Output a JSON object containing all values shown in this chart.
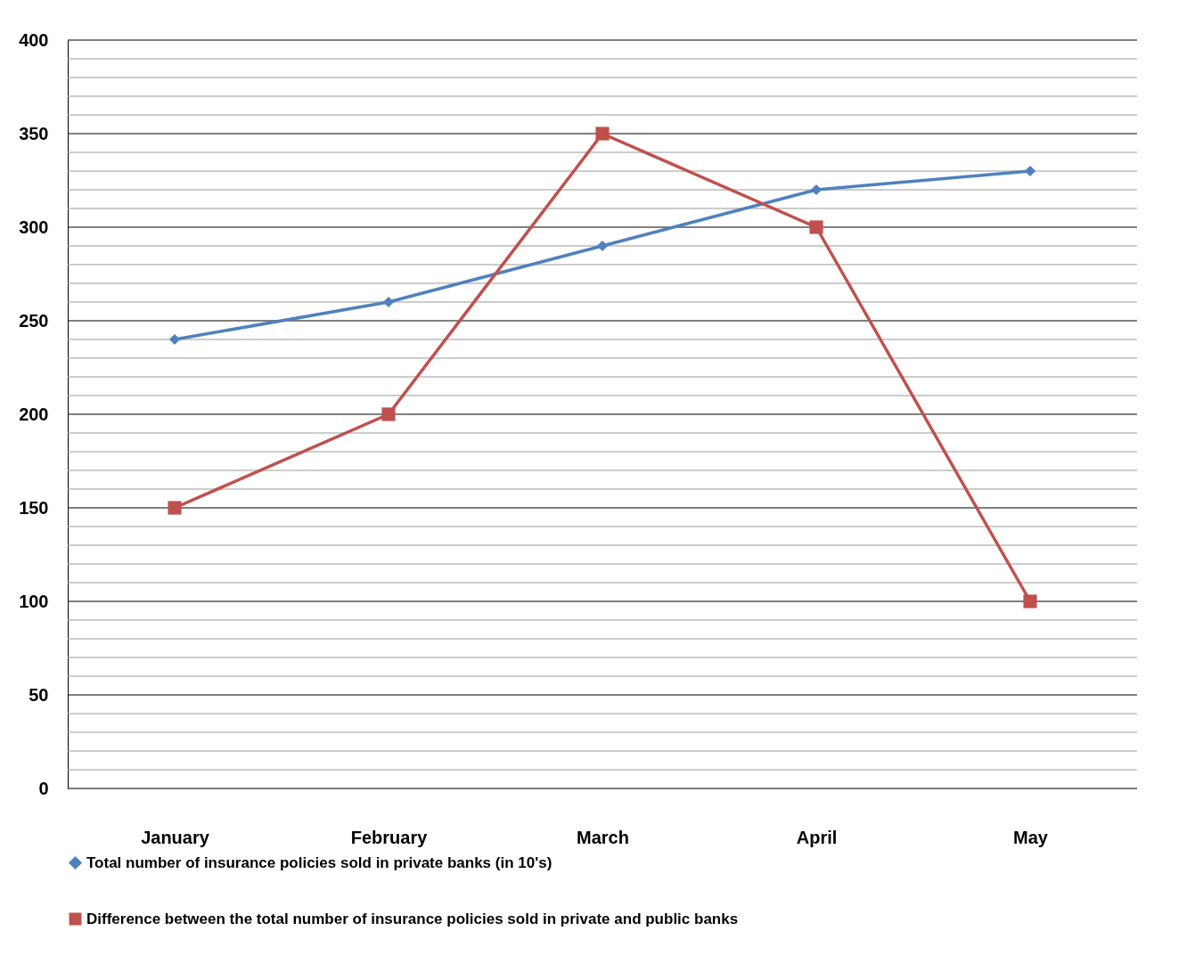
{
  "chart_data": {
    "type": "line",
    "categories": [
      "January",
      "February",
      "March",
      "April",
      "May"
    ],
    "series": [
      {
        "name": "Total number of insurance policies sold in private banks (in 10's)",
        "color": "#4f81bd",
        "marker": "diamond",
        "values": [
          240,
          260,
          290,
          320,
          330
        ]
      },
      {
        "name": "Difference between the total number of insurance policies sold in private and public banks",
        "color": "#c0504d",
        "marker": "square",
        "values": [
          150,
          200,
          350,
          300,
          100
        ]
      }
    ],
    "ylim": [
      0,
      400
    ],
    "yticks": [
      0,
      {
        "value": 10,
        "label": null
      },
      {
        "value": 20,
        "label": null
      },
      {
        "value": 30,
        "label": null
      },
      {
        "value": 40,
        "label": null
      },
      50,
      {
        "value": 60,
        "label": null
      },
      {
        "value": 70,
        "label": null
      },
      {
        "value": 80,
        "label": null
      },
      {
        "value": 90,
        "label": null
      },
      100,
      {
        "value": 110,
        "label": null
      },
      {
        "value": 120,
        "label": null
      },
      {
        "value": 130,
        "label": null
      },
      {
        "value": 140,
        "label": null
      },
      150,
      {
        "value": 160,
        "label": null
      },
      {
        "value": 170,
        "label": null
      },
      {
        "value": 180,
        "label": null
      },
      {
        "value": 190,
        "label": null
      },
      200,
      {
        "value": 210,
        "label": null
      },
      {
        "value": 220,
        "label": null
      },
      {
        "value": 230,
        "label": null
      },
      {
        "value": 240,
        "label": null
      },
      250,
      {
        "value": 260,
        "label": null
      },
      {
        "value": 270,
        "label": null
      },
      {
        "value": 280,
        "label": null
      },
      {
        "value": 290,
        "label": null
      },
      300,
      {
        "value": 310,
        "label": null
      },
      {
        "value": 320,
        "label": null
      },
      {
        "value": 330,
        "label": null
      },
      {
        "value": 340,
        "label": null
      },
      350,
      {
        "value": 360,
        "label": null
      },
      {
        "value": 370,
        "label": null
      },
      {
        "value": 380,
        "label": null
      },
      {
        "value": 390,
        "label": null
      },
      400
    ],
    "grid": "y",
    "legend": "bottom",
    "line_style": "solid"
  }
}
